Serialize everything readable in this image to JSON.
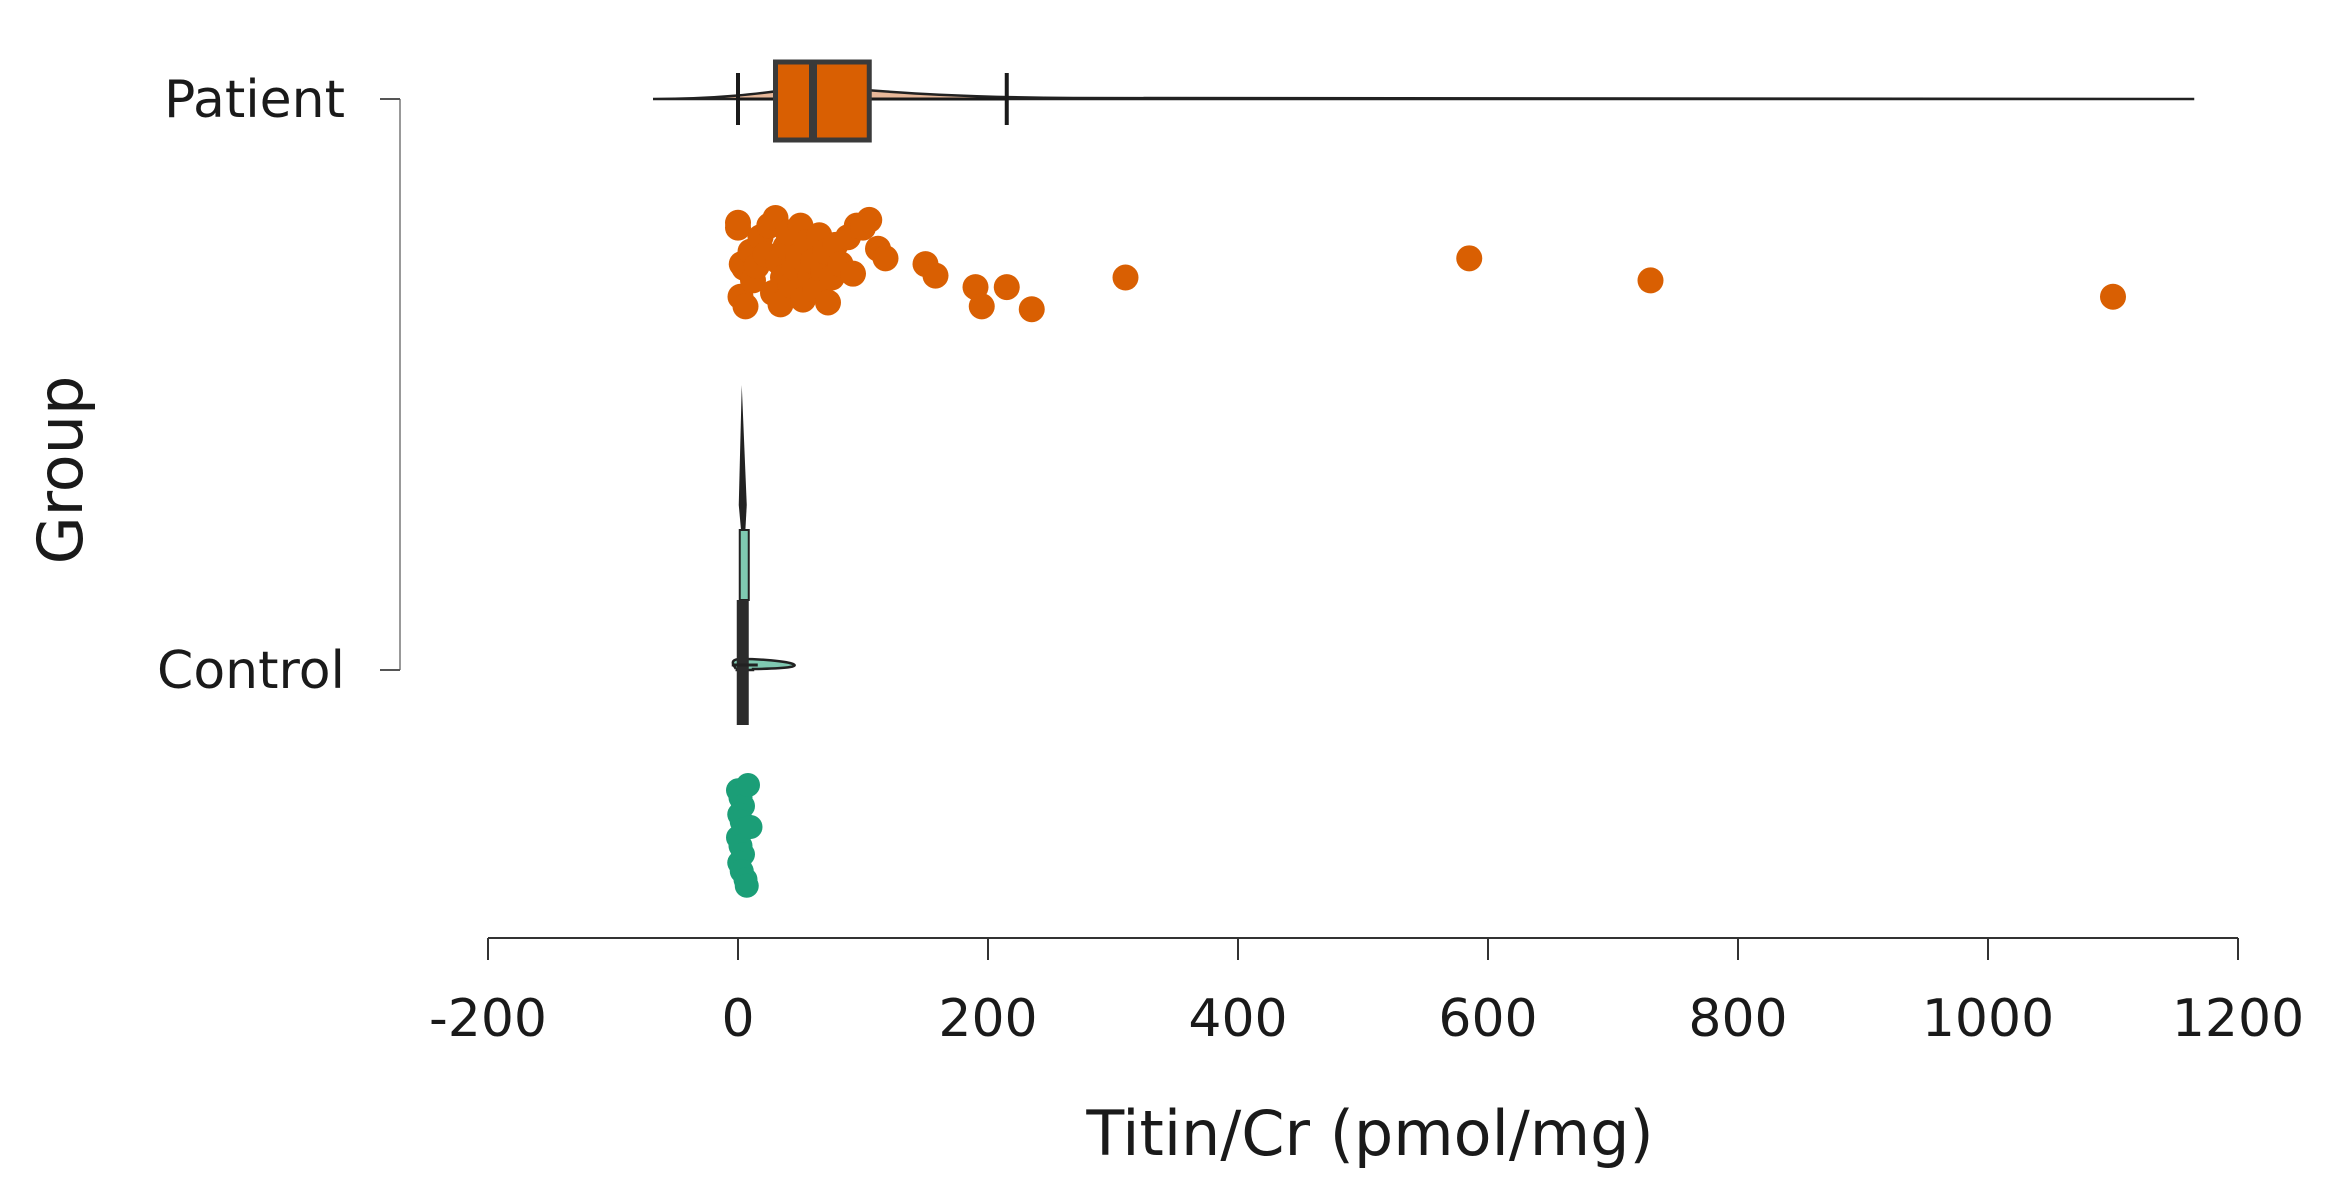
{
  "chart_data": {
    "type": "raincloud",
    "orientation": "horizontal",
    "xlabel": "Titin/Cr (pmol/mg)",
    "ylabel": "Group",
    "xlim": [
      -200,
      1200
    ],
    "xticks": [
      -200,
      0,
      200,
      400,
      600,
      800,
      1000,
      1200
    ],
    "xtick_labels": [
      "-200",
      "0",
      "200",
      "400",
      "600",
      "800",
      "1000",
      "1200"
    ],
    "categories": [
      "Patient",
      "Control"
    ],
    "grid": false,
    "legend": "none",
    "colors": {
      "patient": "#d95f02",
      "patient_violin": "#e8b899",
      "control": "#1b9e77",
      "control_violin": "#7fc9b1",
      "outline": "#3a3a3a",
      "axis": "#333333"
    },
    "series": [
      {
        "name": "Patient",
        "box": {
          "q1": 30,
          "median": 60,
          "q3": 105,
          "whisker_low": 0,
          "whisker_high": 215
        },
        "violin_range": [
          -68,
          1165
        ],
        "points": [
          [
            0,
            0.05
          ],
          [
            0,
            0.1
          ],
          [
            3,
            0.48
          ],
          [
            5,
            0.52
          ],
          [
            2,
            0.82
          ],
          [
            6,
            0.92
          ],
          [
            10,
            0.35
          ],
          [
            12,
            0.65
          ],
          [
            15,
            0.5
          ],
          [
            18,
            0.2
          ],
          [
            22,
            0.38
          ],
          [
            25,
            0.08
          ],
          [
            28,
            0.78
          ],
          [
            30,
            0.0
          ],
          [
            32,
            0.45
          ],
          [
            34,
            0.9
          ],
          [
            36,
            0.62
          ],
          [
            38,
            0.3
          ],
          [
            40,
            0.15
          ],
          [
            42,
            0.7
          ],
          [
            45,
            0.52
          ],
          [
            48,
            0.4
          ],
          [
            50,
            0.08
          ],
          [
            52,
            0.85
          ],
          [
            55,
            0.25
          ],
          [
            58,
            0.6
          ],
          [
            60,
            0.45
          ],
          [
            62,
            0.75
          ],
          [
            65,
            0.18
          ],
          [
            68,
            0.55
          ],
          [
            70,
            0.35
          ],
          [
            72,
            0.88
          ],
          [
            75,
            0.62
          ],
          [
            78,
            0.28
          ],
          [
            82,
            0.48
          ],
          [
            88,
            0.2
          ],
          [
            92,
            0.58
          ],
          [
            95,
            0.08
          ],
          [
            100,
            0.1
          ],
          [
            105,
            0.02
          ],
          [
            112,
            0.32
          ],
          [
            118,
            0.42
          ],
          [
            150,
            0.48
          ],
          [
            158,
            0.6
          ],
          [
            190,
            0.72
          ],
          [
            195,
            0.92
          ],
          [
            215,
            0.72
          ],
          [
            235,
            0.95
          ],
          [
            310,
            0.62
          ],
          [
            585,
            0.42
          ],
          [
            730,
            0.65
          ],
          [
            1100,
            0.82
          ]
        ]
      },
      {
        "name": "Control",
        "box": {
          "q1": 1,
          "median": 3,
          "q3": 6,
          "whisker_low": 0,
          "whisker_high": 12
        },
        "violin_range": [
          -2,
          12
        ],
        "points": [
          [
            0,
            0.05
          ],
          [
            2,
            0.12
          ],
          [
            4,
            0.2
          ],
          [
            1,
            0.28
          ],
          [
            3,
            0.35
          ],
          [
            5,
            0.42
          ],
          [
            0,
            0.5
          ],
          [
            2,
            0.58
          ],
          [
            4,
            0.66
          ],
          [
            1,
            0.74
          ],
          [
            3,
            0.82
          ],
          [
            6,
            0.9
          ],
          [
            8,
            0.0
          ],
          [
            10,
            0.4
          ],
          [
            7,
            0.96
          ]
        ]
      }
    ]
  }
}
